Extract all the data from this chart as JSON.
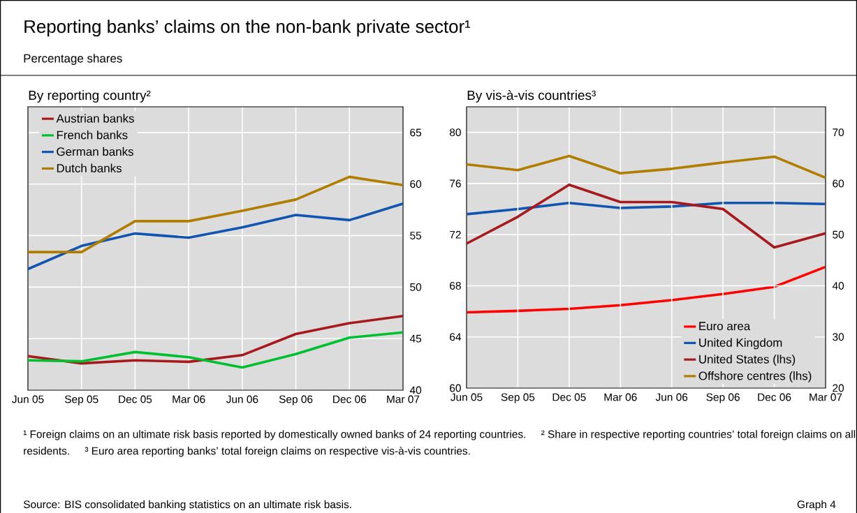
{
  "chart_data": [
    {
      "type": "other",
      "title": "Reporting banks’ claims on the non-bank private sector¹",
      "subtitle": "Percentage shares",
      "annotations": [
        "¹ Foreign claims on an ultimate risk basis reported by domestically owned banks of 24 reporting countries.",
        "² Share in respective reporting countries’ total foreign claims on all residents.",
        "³ Euro area reporting banks’ total foreign claims on respective vis-à-vis countries.",
        "Source: BIS consolidated banking statistics on an ultimate risk basis.",
        "Graph 4"
      ]
    },
    {
      "type": "line",
      "title": "By reporting country²",
      "categories": [
        "Jun 05",
        "Sep 05",
        "Dec 05",
        "Mar 06",
        "Jun 06",
        "Sep 06",
        "Dec 06",
        "Mar 07"
      ],
      "series": [
        {
          "name": "Austrian banks",
          "color": "#a6191c",
          "values": [
            43.3,
            42.6,
            42.9,
            42.75,
            43.4,
            45.45,
            46.5,
            47.2
          ]
        },
        {
          "name": "French banks",
          "color": "#00c030",
          "values": [
            42.9,
            42.8,
            43.7,
            43.2,
            42.2,
            43.5,
            45.1,
            45.6
          ]
        },
        {
          "name": "German banks",
          "color": "#1155b0",
          "values": [
            51.75,
            54.0,
            55.2,
            54.8,
            55.8,
            57.0,
            56.5,
            58.1
          ]
        },
        {
          "name": "Dutch banks",
          "color": "#b07d00",
          "values": [
            53.4,
            53.4,
            56.4,
            56.4,
            57.4,
            58.5,
            60.7,
            59.9
          ]
        }
      ],
      "ylim": [
        40,
        67.5
      ],
      "yticks": [
        40,
        45,
        50,
        55,
        60,
        65
      ],
      "grid": true,
      "legend": "top left"
    },
    {
      "type": "line",
      "title": "By vis-à-vis countries³",
      "categories": [
        "Jun 05",
        "Sep 05",
        "Dec 05",
        "Mar 06",
        "Jun 06",
        "Sep 06",
        "Dec 06",
        "Mar 07"
      ],
      "series": [
        {
          "name": "Euro area",
          "color": "#ff0000",
          "axis": "y2",
          "values": [
            34.8,
            35.1,
            35.5,
            36.2,
            37.2,
            38.4,
            39.8,
            43.7
          ]
        },
        {
          "name": "United Kingdom",
          "color": "#1155b0",
          "axis": "y2",
          "values": [
            54.0,
            55.0,
            56.2,
            55.2,
            55.5,
            56.2,
            56.2,
            56.0
          ]
        },
        {
          "name": "United States (lhs)",
          "color": "#a6191c",
          "values": [
            71.3,
            73.4,
            75.9,
            74.55,
            74.55,
            74.0,
            71.0,
            72.1
          ]
        },
        {
          "name": "Offshore centres (lhs)",
          "color": "#b07d00",
          "values": [
            77.5,
            77.05,
            78.15,
            76.8,
            77.15,
            77.65,
            78.1,
            76.45
          ]
        }
      ],
      "ylim": [
        60,
        82
      ],
      "yticks": [
        60,
        64,
        68,
        72,
        76,
        80
      ],
      "y2lim": [
        20,
        75
      ],
      "y2ticks": [
        20,
        30,
        40,
        50,
        60,
        70
      ],
      "grid": true,
      "legend": "bottom right"
    }
  ]
}
